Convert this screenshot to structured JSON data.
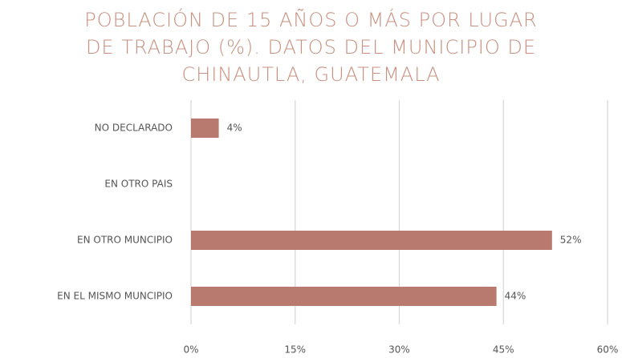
{
  "chart_data": {
    "type": "hbar",
    "title": "POBLACIÓN DE 15 AÑOS O MÁS POR LUGAR DE TRABAJO (%). DATOS DEL MUNICIPIO DE CHINAUTLA, GUATEMALA",
    "categories": [
      "NO DECLARADO",
      "EN OTRO PAIS",
      "EN OTRO MUNCIPIO",
      "EN EL MISMO MUNCIPIO"
    ],
    "values": [
      4,
      null,
      52,
      44
    ],
    "value_labels": [
      "4%",
      null,
      "52%",
      "44%"
    ],
    "color": "#b87a6e",
    "xlim": [
      0,
      60
    ],
    "xticks": [
      {
        "value": 0,
        "label": "0%"
      },
      {
        "value": 15,
        "label": "15%"
      },
      {
        "value": 30,
        "label": "30%"
      },
      {
        "value": 45,
        "label": "45%"
      },
      {
        "value": 60,
        "label": "60%"
      }
    ],
    "grid": true
  }
}
